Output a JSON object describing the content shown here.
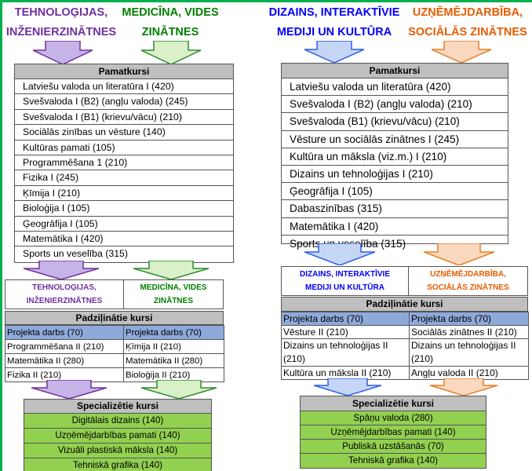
{
  "left": {
    "top_titles": [
      {
        "line1": "TEHNOLOĢIJAS,",
        "line2": "INŽENIERZINĀTNES"
      },
      {
        "line1": "MEDICĪNA, VIDES",
        "line2": "ZINĀTNES"
      }
    ],
    "core_header": "Pamatkursi",
    "core_items": [
      "Latviešu valoda un literatūra I (420)",
      "Svešvaloda I (B2) (angļu valoda) (245)",
      "Svešvaloda I (B1) (krievu/vācu) (210)",
      "Sociālās zinības un vēsture  (140)",
      "Kultūras pamati (105)",
      "Programmēšana 1 (210)",
      "Fizika I (245)",
      "Ķīmija I  (210)",
      "Bioloģija I (105)",
      "Ģeogrāfija I (105)",
      "Matemātika I (420)",
      "Sports un veselība (315)"
    ],
    "track_labels": [
      {
        "line1": "TEHNOLOĢIJAS,",
        "line2": "INŽENIERZINĀTNES"
      },
      {
        "line1": "MEDICĪNA, VIDES",
        "line2": "ZINĀTNES"
      }
    ],
    "advanced_header": "Padziļinātie kursi",
    "advanced_rows": [
      [
        "Projekta darbs (70)",
        "Projekta darbs (70)"
      ],
      [
        "Programmēšana II (210)",
        "Ķīmija II (210)"
      ],
      [
        "Matemātika II  (280)",
        "Matemātika II (280)"
      ],
      [
        "Fizika II (210)",
        "Bioloģija II (210)"
      ]
    ],
    "special_header": "Specializētie kursi",
    "special_items": [
      "Digitālais dizains (140)",
      "Uzņēmējdarbības pamati (140)",
      "Vizuāli plastiskā māksla (140)",
      "Tehniskā grafika (140)"
    ]
  },
  "right": {
    "top_titles": [
      {
        "line1": "DIZAINS, INTERAKTĪVIE",
        "line2": "MEDIJI UN KULTŪRA"
      },
      {
        "line1": "UZŅĒMĒJDARBĪBA,",
        "line2": "SOCIĀLĀS ZINĀTNES"
      }
    ],
    "core_header": "Pamatkursi",
    "core_items": [
      "Latviešu valoda un literatūra (420)",
      "Svešvaloda I (B2) (angļu valoda) (210)",
      "Svešvaloda (B1) (krievu/vācu) (210)",
      "Vēsture un sociālās  zinātnes I (245)",
      "Kultūra un māksla (viz.m.) I (210)",
      "Dizains un tehnoloģijas  I (210)",
      "Ģeogrāfija I (105)",
      "Dabaszinības  (315)",
      "Matemātika I (420)",
      "Sports un veselība (315)"
    ],
    "track_labels": [
      {
        "line1": "DIZAINS, INTERAKTĪVIE",
        "line2": "MEDIJI UN KULTŪRA"
      },
      {
        "line1": "UZŅĒMĒJDARBĪBA,",
        "line2": "SOCIĀLĀS ZINĀTNES"
      }
    ],
    "advanced_header": "Padziļinātie kursi",
    "advanced_rows": [
      [
        "Projekta darbs (70)",
        "Projekta darbs (70)"
      ],
      [
        "Vēsture II (210)",
        "Sociālās zinātnes II (210)"
      ],
      [
        "Dizains un tehnoloģijas II (210)",
        "Dizains un tehnoloģijas II (210)"
      ],
      [
        "Kultūra un māksla II (210)",
        "Angļu valoda II  (210)"
      ]
    ],
    "special_header": "Specializētie kursi",
    "special_items": [
      "Spāņu valoda (280)",
      "Uzņēmējdarbības pamati (140)",
      "Publiskā uzstāšanās (70)",
      "Tehniskā grafika (140)"
    ]
  },
  "colors": {
    "purple": "#7030a0",
    "green": "#008000",
    "blue": "#0000ff",
    "orange": "#e65c00",
    "project_row": "#8eaadb",
    "special_row": "#92d050",
    "header_gray": "#bfbfbf",
    "frame_green": "#00b050"
  }
}
